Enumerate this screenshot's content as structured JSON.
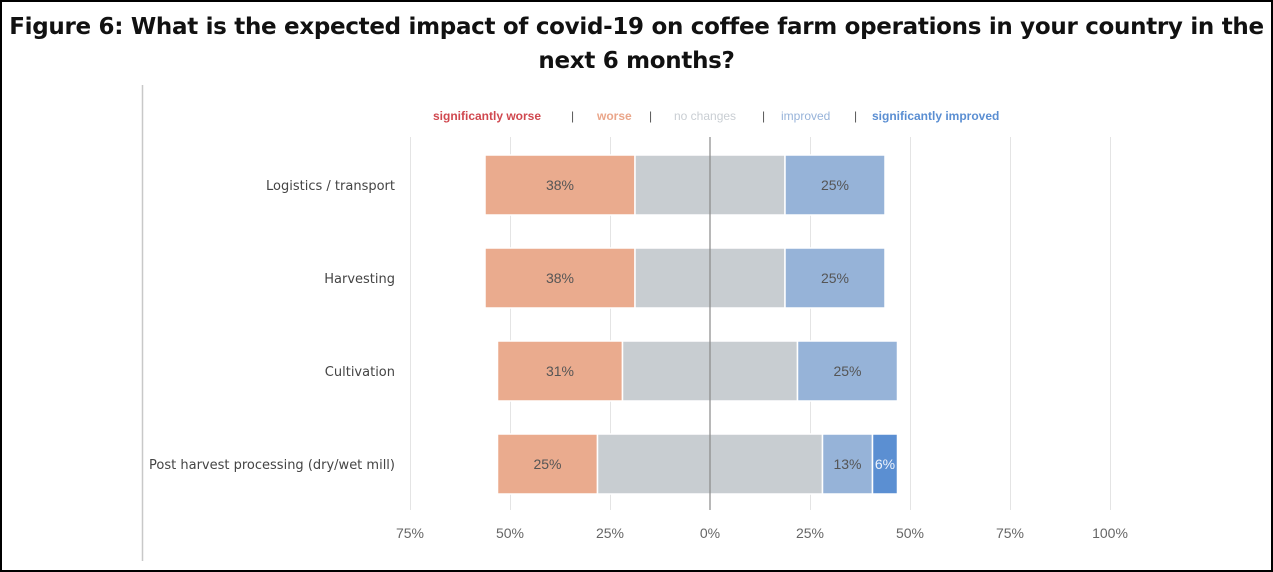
{
  "chart_data": {
    "type": "bar",
    "orientation": "horizontal",
    "stacked": "diverging",
    "title": "Figure 6: What is the expected impact of covid-19 on coffee farm operations in your country in the next 6 months?",
    "xlabel": "",
    "ylabel": "",
    "xlim": [
      -75,
      100
    ],
    "x_ticks": [
      -75,
      -50,
      -25,
      0,
      25,
      50,
      75,
      100
    ],
    "x_tick_labels": [
      "75%",
      "50%",
      "25%",
      "0%",
      "25%",
      "50%",
      "75%",
      "100%"
    ],
    "grid": true,
    "legend_position": "top",
    "categories": [
      "Logistics / transport",
      "Harvesting",
      "Cultivation",
      "Post harvest processing (dry/wet mill)"
    ],
    "series": [
      {
        "name": "significantly worse",
        "color": "#d9534f",
        "values": [
          0,
          0,
          0,
          0
        ],
        "labels": [
          "",
          "",
          "",
          ""
        ]
      },
      {
        "name": "worse",
        "color": "#eaab8e",
        "values": [
          37.5,
          37.5,
          31.25,
          25
        ],
        "labels": [
          "38%",
          "38%",
          "31%",
          "25%"
        ]
      },
      {
        "name": "no changes",
        "color": "#c8cdd1",
        "values": [
          37.5,
          37.5,
          43.75,
          56.25
        ],
        "labels": [
          "",
          "",
          "",
          ""
        ]
      },
      {
        "name": "improved",
        "color": "#96b3d8",
        "values": [
          25,
          25,
          25,
          12.5
        ],
        "labels": [
          "25%",
          "25%",
          "25%",
          "13%"
        ]
      },
      {
        "name": "significantly improved",
        "color": "#5b8fd2",
        "values": [
          0,
          0,
          0,
          6.25
        ],
        "labels": [
          "",
          "",
          "",
          "6%"
        ]
      }
    ],
    "legend_colors": {
      "significantly worse": "#d0484f",
      "worse": "#eaa68a",
      "no changes": "#c9ced3",
      "improved": "#97b3d9",
      "significantly improved": "#5a8ed2"
    },
    "legend_separator": "|"
  }
}
